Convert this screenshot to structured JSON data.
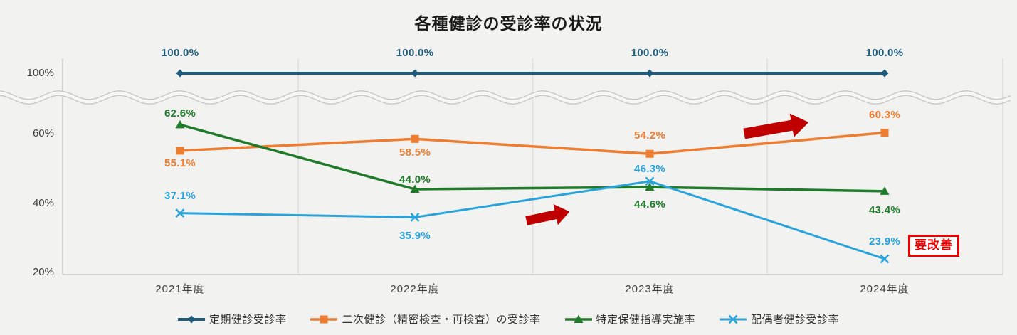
{
  "title": "各種健診の受診率の状況",
  "annotations": {
    "improvement_badge": "要改善",
    "improvement_badge_color": "#ee0000",
    "arrow_color": "#C00000",
    "arrow_meaning": "upward-trend-arrows"
  },
  "chart_data": {
    "type": "line",
    "title": "各種健診の受診率の状況",
    "categories": [
      "2021年度",
      "2022年度",
      "2023年度",
      "2024年度"
    ],
    "y_ticks": [
      "100%",
      "60%",
      "40%",
      "20%"
    ],
    "axis_break": "wavy break between 60% and 100%",
    "grid": "vertical category gridlines only",
    "legend_position": "bottom",
    "series": [
      {
        "name": "定期健診受診率",
        "color": "#1F5C7D",
        "marker": "diamond",
        "values": [
          100.0,
          100.0,
          100.0,
          100.0
        ],
        "labels": [
          "100.0%",
          "100.0%",
          "100.0%",
          "100.0%"
        ]
      },
      {
        "name": "二次健診（精密検査・再検査）の受診率",
        "color": "#ED7D31",
        "marker": "square",
        "values": [
          55.1,
          58.5,
          54.2,
          60.3
        ],
        "labels": [
          "55.1%",
          "58.5%",
          "54.2%",
          "60.3%"
        ]
      },
      {
        "name": "特定保健指導実施率",
        "color": "#1F7A2A",
        "marker": "triangle",
        "values": [
          62.6,
          44.0,
          44.6,
          43.4
        ],
        "labels": [
          "62.6%",
          "44.0%",
          "44.6%",
          "43.4%"
        ]
      },
      {
        "name": "配偶者健診受診率",
        "color": "#29A3DB",
        "marker": "x",
        "values": [
          37.1,
          35.9,
          46.3,
          23.9
        ],
        "labels": [
          "37.1%",
          "35.9%",
          "46.3%",
          "23.9%"
        ]
      }
    ]
  }
}
